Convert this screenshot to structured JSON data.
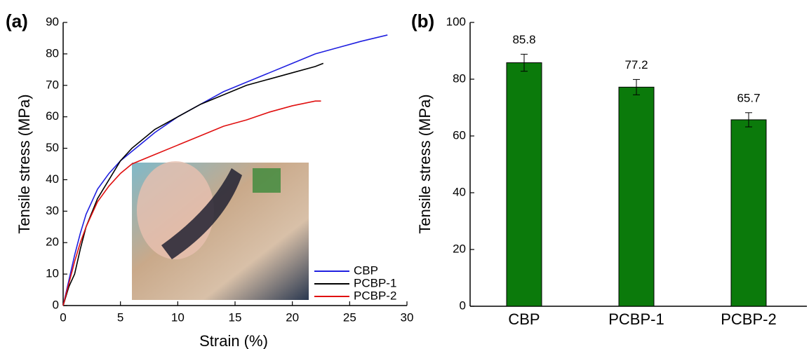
{
  "chart_data": [
    {
      "type": "line",
      "label": "(a)",
      "xlabel": "Strain (%)",
      "ylabel": "Tensile stress (MPa)",
      "xlim": [
        0,
        30
      ],
      "xticks": [
        0,
        5,
        10,
        15,
        20,
        25,
        30
      ],
      "ylim": [
        0,
        90
      ],
      "yticks": [
        0,
        10,
        20,
        30,
        40,
        50,
        60,
        70,
        80,
        90
      ],
      "grid": false,
      "legend": "lower right",
      "series": [
        {
          "name": "CBP",
          "color": "#2020e0",
          "x": [
            0,
            0.5,
            1,
            1.5,
            2,
            3,
            4,
            5,
            6,
            7,
            8,
            10,
            12,
            14,
            16,
            18,
            20,
            22,
            24,
            26,
            28.3
          ],
          "values": [
            0,
            8,
            16,
            23,
            29,
            37,
            42,
            46,
            49,
            52,
            55,
            60,
            64,
            68,
            71,
            74,
            77,
            80,
            82,
            84,
            86
          ]
        },
        {
          "name": "PCBP-1",
          "color": "#000000",
          "x": [
            0,
            0.5,
            1,
            1.5,
            2,
            3,
            4,
            5,
            6,
            7,
            8,
            10,
            12,
            14,
            16,
            18,
            20,
            22,
            22.7
          ],
          "values": [
            0,
            6,
            10,
            18,
            25,
            34,
            40,
            46,
            50,
            53,
            56,
            60,
            64,
            67,
            70,
            72,
            74,
            76,
            77
          ]
        },
        {
          "name": "PCBP-2",
          "color": "#e01010",
          "x": [
            0,
            0.5,
            1,
            1.5,
            2,
            3,
            4,
            5,
            6,
            8,
            10,
            12,
            14,
            16,
            18,
            20,
            22,
            22.5
          ],
          "values": [
            0,
            7,
            14,
            20,
            25,
            33,
            38,
            42,
            45,
            48,
            51,
            54,
            57,
            59,
            61.5,
            63.5,
            65,
            65
          ]
        }
      ]
    },
    {
      "type": "bar",
      "label": "(b)",
      "ylabel": "Tensile stress (MPa)",
      "categories": [
        "CBP",
        "PCBP-1",
        "PCBP-2"
      ],
      "values": [
        85.8,
        77.2,
        65.7
      ],
      "errors": [
        3,
        2.7,
        2.5
      ],
      "color": "#0b7a0b",
      "ylim": [
        0,
        100
      ],
      "yticks": [
        0,
        20,
        40,
        60,
        80,
        100
      ],
      "grid": false
    }
  ]
}
